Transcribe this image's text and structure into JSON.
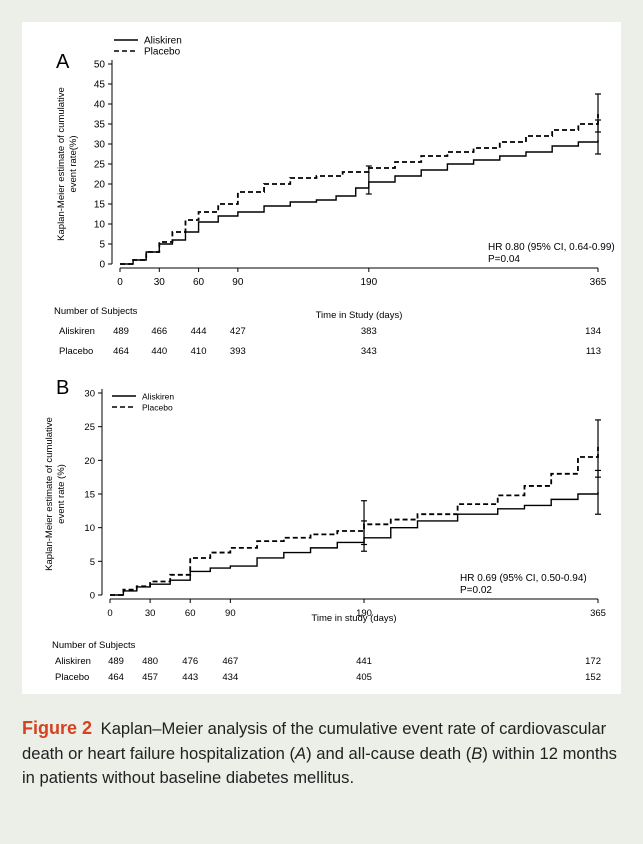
{
  "colors": {
    "background": "#eceee8",
    "panel": "#ffffff",
    "label": "#d4421f",
    "line": "#000000"
  },
  "caption": {
    "label": "Figure 2",
    "segments": [
      {
        "text": "Kaplan–Meier analysis of the cumulative event rate of cardiovascular death or heart failure hospitalization (",
        "italic": false
      },
      {
        "text": "A",
        "italic": true
      },
      {
        "text": ") and all-cause death (",
        "italic": false
      },
      {
        "text": "B",
        "italic": true
      },
      {
        "text": ") within 12 months in patients without baseline diabetes mellitus.",
        "italic": false
      }
    ]
  },
  "chart_data": [
    {
      "panel_label": "A",
      "type": "line",
      "line_style": "step",
      "xlabel": "Time in Study (days)",
      "ylabel": [
        "Kaplan-Meier estimate of cumulative",
        "event rate(%)"
      ],
      "xticks": [
        0,
        30,
        60,
        90,
        190,
        365
      ],
      "yticks": [
        0,
        5,
        10,
        15,
        20,
        25,
        30,
        35,
        40,
        45,
        50
      ],
      "xlim": [
        0,
        365
      ],
      "ylim": [
        0,
        50
      ],
      "legend": "top-left",
      "annotation": [
        "HR 0.80 (95% CI, 0.64-0.99)",
        "P=0.04"
      ],
      "series": [
        {
          "name": "Aliskiren",
          "style": "solid",
          "points": [
            [
              0,
              0
            ],
            [
              10,
              1
            ],
            [
              20,
              3
            ],
            [
              30,
              5
            ],
            [
              40,
              6
            ],
            [
              50,
              8
            ],
            [
              60,
              10.5
            ],
            [
              75,
              12
            ],
            [
              90,
              13
            ],
            [
              110,
              14.5
            ],
            [
              130,
              15.5
            ],
            [
              150,
              16
            ],
            [
              165,
              17
            ],
            [
              180,
              19
            ],
            [
              190,
              20.5
            ],
            [
              210,
              22
            ],
            [
              230,
              23.5
            ],
            [
              250,
              25
            ],
            [
              270,
              26
            ],
            [
              290,
              27
            ],
            [
              310,
              28
            ],
            [
              330,
              29.5
            ],
            [
              350,
              30.5
            ],
            [
              365,
              31
            ]
          ],
          "error_bars": [
            {
              "x": 190,
              "low": 17.5,
              "high": 24.5
            },
            {
              "x": 365,
              "low": 27.5,
              "high": 36
            }
          ]
        },
        {
          "name": "Placebo",
          "style": "dashed",
          "points": [
            [
              0,
              0
            ],
            [
              10,
              1
            ],
            [
              20,
              3
            ],
            [
              30,
              5.5
            ],
            [
              40,
              8
            ],
            [
              50,
              11
            ],
            [
              60,
              13
            ],
            [
              75,
              15
            ],
            [
              90,
              18
            ],
            [
              110,
              20
            ],
            [
              130,
              21.5
            ],
            [
              150,
              22
            ],
            [
              170,
              23
            ],
            [
              190,
              24
            ],
            [
              210,
              25.5
            ],
            [
              230,
              27
            ],
            [
              250,
              28
            ],
            [
              270,
              29
            ],
            [
              290,
              30.5
            ],
            [
              310,
              32
            ],
            [
              330,
              33.5
            ],
            [
              350,
              35
            ],
            [
              365,
              37.5
            ]
          ],
          "error_bars": [
            {
              "x": 365,
              "low": 33,
              "high": 42.5
            }
          ]
        }
      ],
      "risk_table": {
        "title": "Number of Subjects",
        "x": [
          0,
          30,
          60,
          90,
          190,
          365
        ],
        "rows": [
          {
            "name": "Aliskiren",
            "values": [
              489,
              466,
              444,
              427,
              383,
              134
            ]
          },
          {
            "name": "Placebo",
            "values": [
              464,
              440,
              410,
              393,
              343,
              113
            ]
          }
        ]
      }
    },
    {
      "panel_label": "B",
      "type": "line",
      "line_style": "step",
      "xlabel": "Time in study (days)",
      "ylabel": [
        "Kaplan-Meier estimate of cumulative",
        "event rate (%)"
      ],
      "xticks": [
        0,
        30,
        60,
        90,
        190,
        365
      ],
      "yticks": [
        0,
        5,
        10,
        15,
        20,
        25,
        30
      ],
      "xlim": [
        0,
        365
      ],
      "ylim": [
        0,
        30
      ],
      "legend": "top-left",
      "annotation": [
        "HR 0.69 (95% CI, 0.50-0.94)",
        "P=0.02"
      ],
      "series": [
        {
          "name": "Aliskiren",
          "style": "solid",
          "points": [
            [
              0,
              0
            ],
            [
              10,
              0.6
            ],
            [
              20,
              1.2
            ],
            [
              30,
              1.6
            ],
            [
              45,
              2.2
            ],
            [
              60,
              3.5
            ],
            [
              75,
              4
            ],
            [
              90,
              4.3
            ],
            [
              110,
              5.5
            ],
            [
              130,
              6.3
            ],
            [
              150,
              7
            ],
            [
              170,
              7.8
            ],
            [
              190,
              8.5
            ],
            [
              210,
              10
            ],
            [
              230,
              11
            ],
            [
              260,
              12
            ],
            [
              290,
              12.8
            ],
            [
              310,
              13.3
            ],
            [
              330,
              14.2
            ],
            [
              350,
              15
            ],
            [
              365,
              15.3
            ]
          ],
          "error_bars": [
            {
              "x": 190,
              "low": 6.5,
              "high": 11
            },
            {
              "x": 365,
              "low": 12,
              "high": 18.5
            }
          ]
        },
        {
          "name": "Placebo",
          "style": "dashed",
          "points": [
            [
              0,
              0
            ],
            [
              10,
              0.8
            ],
            [
              20,
              1.3
            ],
            [
              30,
              2
            ],
            [
              45,
              3
            ],
            [
              60,
              5.5
            ],
            [
              75,
              6.3
            ],
            [
              90,
              7
            ],
            [
              110,
              8
            ],
            [
              130,
              8.5
            ],
            [
              150,
              9
            ],
            [
              170,
              9.5
            ],
            [
              190,
              10.5
            ],
            [
              210,
              11.2
            ],
            [
              230,
              12
            ],
            [
              260,
              13.5
            ],
            [
              290,
              14.8
            ],
            [
              310,
              16.2
            ],
            [
              330,
              18
            ],
            [
              350,
              20.5
            ],
            [
              365,
              22
            ]
          ],
          "error_bars": [
            {
              "x": 190,
              "low": 7.5,
              "high": 14
            },
            {
              "x": 365,
              "low": 17.5,
              "high": 26
            }
          ]
        }
      ],
      "risk_table": {
        "title": "Number of Subjects",
        "x": [
          0,
          30,
          60,
          90,
          190,
          365
        ],
        "rows": [
          {
            "name": "Aliskiren",
            "values": [
              489,
              480,
              476,
              467,
              441,
              172
            ]
          },
          {
            "name": "Placebo",
            "values": [
              464,
              457,
              443,
              434,
              405,
              152
            ]
          }
        ]
      }
    }
  ]
}
